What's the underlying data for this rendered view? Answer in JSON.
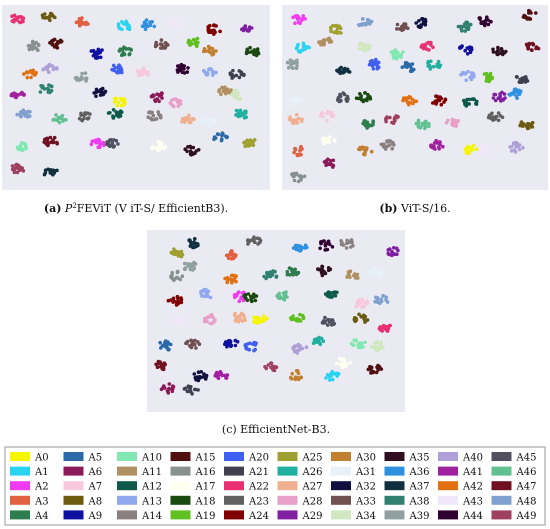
{
  "panels": [
    {
      "label": "(a)",
      "caption_main": "P",
      "caption_sup": "2",
      "caption_rest": "FEViT (V iT-S/ EfficientB3)."
    },
    {
      "label": "(b)",
      "caption": "ViT-S/16."
    },
    {
      "label": "(c)",
      "caption": "EfficientNet-B3."
    }
  ],
  "legend": [
    {
      "name": "A0",
      "color": "#f5f500"
    },
    {
      "name": "A1",
      "color": "#2ad4f0"
    },
    {
      "name": "A2",
      "color": "#f03cf0"
    },
    {
      "name": "A3",
      "color": "#e06040"
    },
    {
      "name": "A4",
      "color": "#2e7d4f"
    },
    {
      "name": "A5",
      "color": "#2a6aa8"
    },
    {
      "name": "A6",
      "color": "#8b1a5a"
    },
    {
      "name": "A7",
      "color": "#f8c8dc"
    },
    {
      "name": "A8",
      "color": "#6b5a10"
    },
    {
      "name": "A9",
      "color": "#1010a0"
    },
    {
      "name": "A10",
      "color": "#80e8b0"
    },
    {
      "name": "A11",
      "color": "#b09060"
    },
    {
      "name": "A12",
      "color": "#0e5a4a"
    },
    {
      "name": "A13",
      "color": "#90a8f0"
    },
    {
      "name": "A14",
      "color": "#8a8080"
    },
    {
      "name": "A15",
      "color": "#501010"
    },
    {
      "name": "A16",
      "color": "#889090"
    },
    {
      "name": "A17",
      "color": "#fffff0"
    },
    {
      "name": "A18",
      "color": "#1a4a10"
    },
    {
      "name": "A19",
      "color": "#60c020"
    },
    {
      "name": "A20",
      "color": "#4060f0"
    },
    {
      "name": "A21",
      "color": "#404050"
    },
    {
      "name": "A22",
      "color": "#e83070"
    },
    {
      "name": "A23",
      "color": "#606060"
    },
    {
      "name": "A24",
      "color": "#800000"
    },
    {
      "name": "A25",
      "color": "#a0a030"
    },
    {
      "name": "A26",
      "color": "#20b0a0"
    },
    {
      "name": "A27",
      "color": "#f0b090"
    },
    {
      "name": "A28",
      "color": "#e8a0c8"
    },
    {
      "name": "A29",
      "color": "#8020a0"
    },
    {
      "name": "A30",
      "color": "#c08030"
    },
    {
      "name": "A31",
      "color": "#e8f0f8"
    },
    {
      "name": "A32",
      "color": "#101040"
    },
    {
      "name": "A33",
      "color": "#705050"
    },
    {
      "name": "A34",
      "color": "#d0e8c0"
    },
    {
      "name": "A35",
      "color": "#301020"
    },
    {
      "name": "A36",
      "color": "#3090e0"
    },
    {
      "name": "A37",
      "color": "#103040"
    },
    {
      "name": "A38",
      "color": "#308070"
    },
    {
      "name": "A39",
      "color": "#90a0a0"
    },
    {
      "name": "A40",
      "color": "#b0a0d8"
    },
    {
      "name": "A41",
      "color": "#a020a0"
    },
    {
      "name": "A42",
      "color": "#e07010"
    },
    {
      "name": "A43",
      "color": "#f0e8f8"
    },
    {
      "name": "A44",
      "color": "#300030"
    },
    {
      "name": "A45",
      "color": "#505060"
    },
    {
      "name": "A46",
      "color": "#60c090"
    },
    {
      "name": "A47",
      "color": "#701020"
    },
    {
      "name": "A48",
      "color": "#80a0d0"
    },
    {
      "name": "A49",
      "color": "#a04060"
    }
  ]
}
